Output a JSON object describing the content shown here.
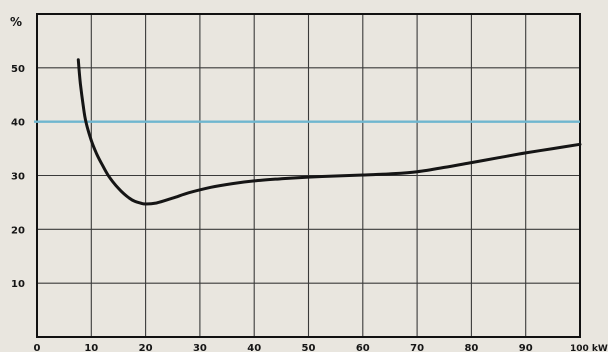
{
  "chart_data": {
    "type": "line",
    "title": "",
    "xlabel": "",
    "ylabel": "",
    "y_unit": "%",
    "x_unit": "kW",
    "xlim": [
      0,
      100
    ],
    "ylim": [
      0,
      60
    ],
    "x_ticks": [
      0,
      10,
      20,
      30,
      40,
      50,
      60,
      70,
      80,
      90,
      100
    ],
    "x_tick_labels": [
      "0",
      "10",
      "20",
      "30",
      "40",
      "50",
      "60",
      "70",
      "80",
      "90",
      "100 kW"
    ],
    "y_ticks": [
      10,
      20,
      30,
      40,
      50
    ],
    "y_tick_labels": [
      "10",
      "20",
      "30",
      "40",
      "50"
    ],
    "grid": true,
    "reference_line": {
      "y": 40,
      "color": "#6fb6cf"
    },
    "series": [
      {
        "color": "#151515",
        "x": [
          7.6,
          8.0,
          8.5,
          9,
          10,
          11,
          12,
          13,
          14,
          15,
          16,
          17,
          18,
          19,
          20,
          22,
          25,
          28,
          32,
          36,
          40,
          45,
          50,
          55,
          60,
          65,
          70,
          75,
          80,
          85,
          90,
          95,
          100
        ],
        "y": [
          51.5,
          47,
          43,
          40,
          36.5,
          34,
          32,
          30.2,
          28.8,
          27.6,
          26.6,
          25.8,
          25.2,
          24.9,
          24.7,
          24.9,
          25.8,
          26.8,
          27.8,
          28.5,
          29,
          29.4,
          29.7,
          29.9,
          30.1,
          30.3,
          30.7,
          31.5,
          32.4,
          33.3,
          34.2,
          35.0,
          35.8
        ]
      }
    ]
  }
}
